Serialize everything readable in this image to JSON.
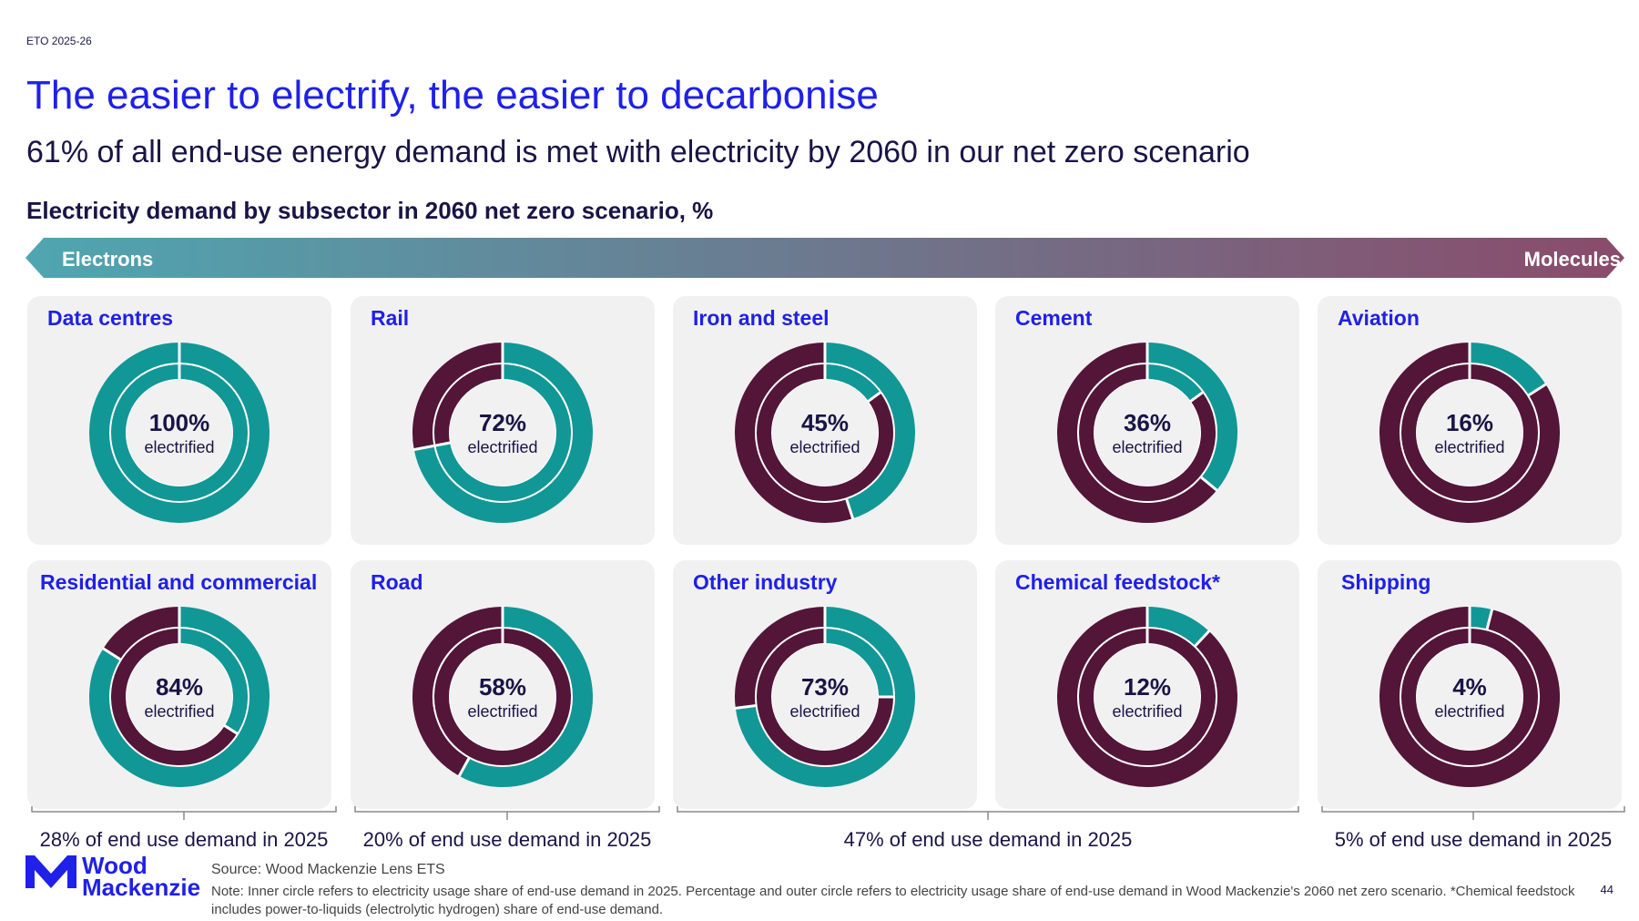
{
  "header": {
    "eto_label": "ETO 2025-26",
    "title": "The easier to electrify, the easier to decarbonise",
    "subtitle": "61% of all end-use energy demand is met with electricity by 2060 in our net zero scenario"
  },
  "arrow": {
    "left_label": "Electrons",
    "right_label": "Molecules",
    "left_color": "#4fa6b1",
    "right_color": "#8a4b6b"
  },
  "colors": {
    "electrified": "#119796",
    "non_electrified": "#531538",
    "panel_bg": "#f1f1f1",
    "title_blue": "#1f20e8"
  },
  "chart_data": {
    "type": "pie",
    "title": "Electricity demand by subsector in 2060 net zero scenario, %",
    "center_suffix": "electrified",
    "series": [
      {
        "name": "Data centres",
        "outer_2060": 100,
        "inner_2025": 100,
        "label": "100%"
      },
      {
        "name": "Rail",
        "outer_2060": 72,
        "inner_2025": 72,
        "label": "72%"
      },
      {
        "name": "Iron and steel",
        "outer_2060": 45,
        "inner_2025": 15,
        "label": "45%"
      },
      {
        "name": "Cement",
        "outer_2060": 36,
        "inner_2025": 15,
        "label": "36%"
      },
      {
        "name": "Aviation",
        "outer_2060": 16,
        "inner_2025": 0,
        "label": "16%"
      },
      {
        "name": "Residential and commercial",
        "outer_2060": 84,
        "inner_2025": 34,
        "label": "84%"
      },
      {
        "name": "Road",
        "outer_2060": 58,
        "inner_2025": 0,
        "label": "58%"
      },
      {
        "name": "Other industry",
        "outer_2060": 73,
        "inner_2025": 25,
        "label": "73%"
      },
      {
        "name": "Chemical feedstock*",
        "outer_2060": 12,
        "inner_2025": 0,
        "label": "12%"
      },
      {
        "name": "Shipping",
        "outer_2060": 4,
        "inner_2025": 0,
        "label": "4%"
      }
    ],
    "groups": [
      {
        "label": "28% of end use demand in 2025"
      },
      {
        "label": "20% of end use demand in 2025"
      },
      {
        "label": "47% of end use demand in 2025"
      },
      {
        "label": "5% of end use demand in 2025"
      }
    ]
  },
  "footer": {
    "logo_line1": "Wood",
    "logo_line2": "Mackenzie",
    "source": "Source: Wood Mackenzie Lens ETS",
    "note": "Note: Inner circle refers to electricity usage share of end-use demand in 2025. Percentage and outer circle refers to electricity usage share of end-use demand in Wood Mackenzie's 2060 net zero scenario. *Chemical feedstock includes power-to-liquids (electrolytic hydrogen) share of end-use demand.",
    "page_number": "44"
  }
}
